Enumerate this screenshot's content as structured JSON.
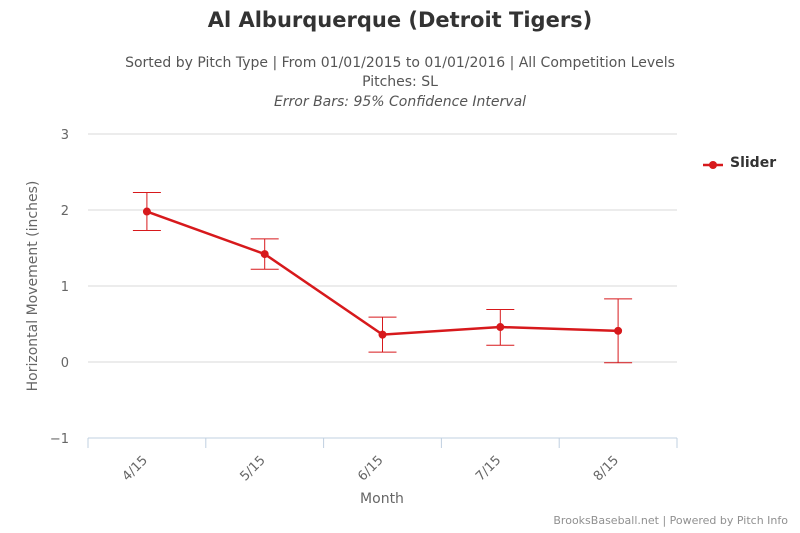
{
  "title": "Al Alburquerque (Detroit Tigers)",
  "subtitle_line1": "Sorted by Pitch Type | From 01/01/2015 to 01/01/2016 | All Competition Levels",
  "subtitle_line2": "Pitches: SL",
  "subtitle_line3": "Error Bars: 95% Confidence Interval",
  "credits": "BrooksBaseball.net | Powered by Pitch Info",
  "chart_data": {
    "type": "line",
    "xlabel": "Month",
    "ylabel": "Horizontal Movement (inches)",
    "categories": [
      "4/15",
      "5/15",
      "6/15",
      "7/15",
      "8/15"
    ],
    "yticks": [
      "3",
      "2",
      "1",
      "0",
      "−1"
    ],
    "ylim": [
      -1,
      3
    ],
    "grid": true,
    "legend_position": "right",
    "series": [
      {
        "name": "Slider",
        "color": "#d7191c",
        "values": [
          1.98,
          1.42,
          0.36,
          0.46,
          0.41
        ],
        "error_low": [
          1.73,
          1.22,
          0.13,
          0.22,
          -0.01
        ],
        "error_high": [
          2.23,
          1.62,
          0.59,
          0.69,
          0.83
        ]
      }
    ]
  }
}
